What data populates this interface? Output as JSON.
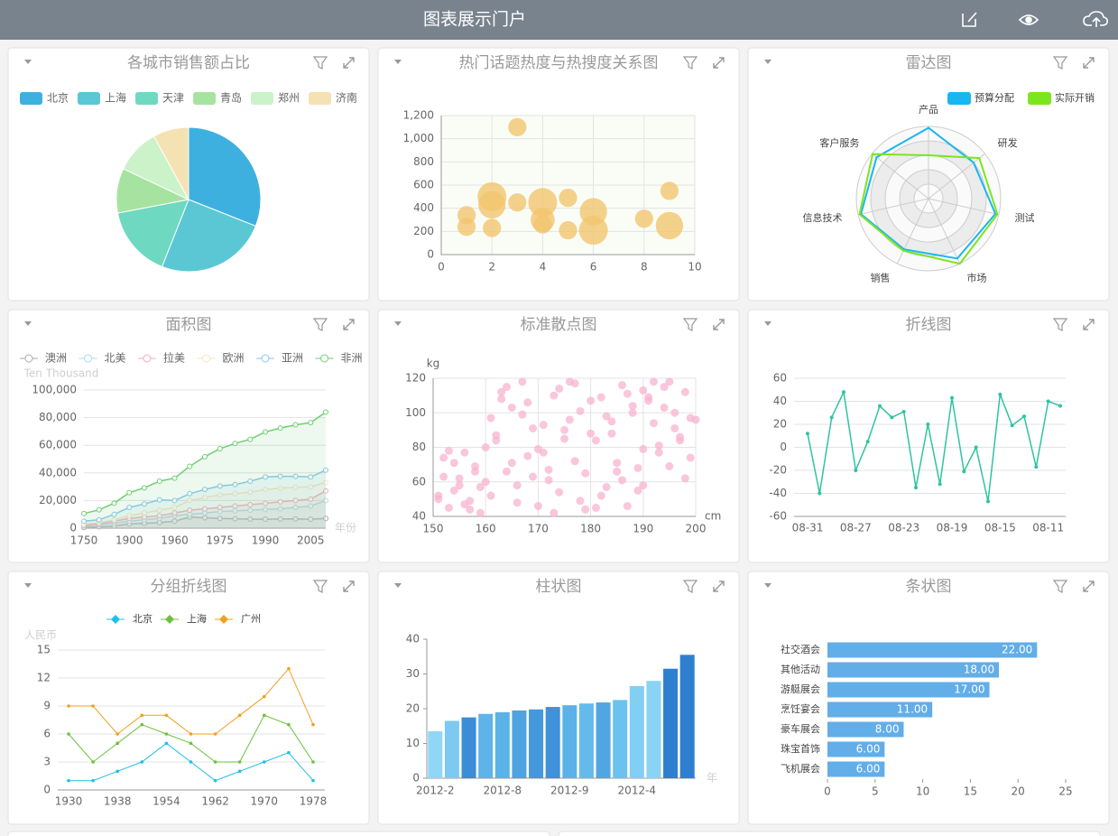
{
  "header": {
    "title": "图表展示门户"
  },
  "chart_data": [
    {
      "type": "pie",
      "title": "各城市销售额占比",
      "categories": [
        "北京",
        "上海",
        "天津",
        "青岛",
        "郑州",
        "济南"
      ],
      "values": [
        31,
        25,
        16,
        10,
        10,
        8
      ],
      "colors": [
        "#3eb0e0",
        "#5bc7d4",
        "#6fd8c0",
        "#a7e3a0",
        "#cbf2c8",
        "#f5e2b3"
      ]
    },
    {
      "type": "bubble",
      "title": "热门话题热度与热搜度关系图",
      "x": [
        1,
        1,
        2,
        2,
        2,
        3,
        3,
        4,
        4,
        4,
        5,
        5,
        6,
        6,
        8,
        9,
        9
      ],
      "y": [
        340,
        240,
        500,
        430,
        230,
        1100,
        450,
        450,
        300,
        260,
        490,
        210,
        370,
        210,
        310,
        550,
        250
      ],
      "sizes": [
        40,
        40,
        100,
        90,
        40,
        40,
        40,
        100,
        70,
        40,
        40,
        40,
        90,
        100,
        40,
        40,
        90
      ],
      "color": "#f3c56f",
      "xlim": [
        0,
        10
      ],
      "xticks": [
        0,
        2,
        4,
        6,
        8,
        10
      ],
      "ylim": [
        0,
        1200
      ],
      "yticks": [
        0,
        200,
        400,
        600,
        800,
        {
          "value": 1000,
          "label": "1,000"
        },
        {
          "value": 1200,
          "label": "1,200"
        }
      ],
      "grid": true
    },
    {
      "type": "radar",
      "title": "雷达图",
      "indicators": [
        "产品",
        "研发",
        "测试",
        "市场",
        "销售",
        "信息技术",
        "客户服务"
      ],
      "max": 100,
      "series": [
        {
          "name": "预算分配",
          "color": "#1ab6f0",
          "values": [
            98,
            80,
            95,
            92,
            78,
            96,
            92
          ]
        },
        {
          "name": "实际开销",
          "color": "#7be61f",
          "values": [
            60,
            90,
            98,
            100,
            80,
            98,
            99
          ]
        }
      ]
    },
    {
      "type": "area",
      "title": "面积图",
      "y_label": "Ten Thousand",
      "x_label": "年份",
      "categories": [
        "1750",
        null,
        null,
        "1900",
        null,
        null,
        "1960",
        null,
        null,
        "1975",
        null,
        null,
        "1990",
        null,
        null,
        "2005",
        null
      ],
      "series": [
        {
          "name": "澳洲",
          "color": "#aaaaaa",
          "values": [
            500,
            1000,
            1500,
            3000,
            3500,
            4000,
            5000,
            8000,
            7500,
            7000,
            6800,
            6500,
            6500,
            6600,
            6700,
            6500,
            7000
          ]
        },
        {
          "name": "北美",
          "color": "#a8dcef",
          "values": [
            1500,
            2500,
            3500,
            5000,
            6000,
            7000,
            9000,
            10000,
            11000,
            12000,
            12500,
            13000,
            13500,
            14000,
            15000,
            16000,
            20000
          ]
        },
        {
          "name": "拉美",
          "color": "#f5a8bb",
          "values": [
            2000,
            3000,
            5000,
            7000,
            8000,
            9000,
            11000,
            13000,
            14000,
            15000,
            16000,
            17000,
            18000,
            19000,
            20000,
            21000,
            27000
          ]
        },
        {
          "name": "欧洲",
          "color": "#fde3bd",
          "values": [
            3000,
            4000,
            6000,
            9000,
            11000,
            13000,
            15000,
            20000,
            22000,
            24000,
            25000,
            26000,
            28000,
            29000,
            29500,
            30000,
            33000
          ]
        },
        {
          "name": "亚洲",
          "color": "#8ac7ee",
          "values": [
            5000,
            6000,
            10000,
            15000,
            17500,
            20500,
            20000,
            25000,
            28000,
            30500,
            31500,
            34000,
            37000,
            37500,
            37500,
            37000,
            42000
          ]
        },
        {
          "name": "非洲",
          "color": "#6fcf73",
          "values": [
            10600,
            13300,
            18100,
            25700,
            29200,
            34000,
            36200,
            44800,
            51700,
            57500,
            61300,
            64300,
            69700,
            72500,
            74800,
            76400,
            84000
          ]
        }
      ],
      "ylim": [
        0,
        100000
      ],
      "yticks": [
        0,
        {
          "value": 20000,
          "label": "20,000"
        },
        {
          "value": 40000,
          "label": "40,000"
        },
        {
          "value": 60000,
          "label": "60,000"
        },
        {
          "value": 80000,
          "label": "80,000"
        },
        {
          "value": 100000,
          "label": "100,000"
        }
      ],
      "grid": true
    },
    {
      "type": "scatter",
      "title": "标准散点图",
      "y_label": "kg",
      "x_label": "cm",
      "color": "#f7b3cf",
      "x": [
        151,
        152,
        153,
        154,
        155,
        156,
        157,
        158,
        159,
        160,
        152,
        154,
        156,
        158,
        160,
        155,
        157,
        159,
        153,
        151,
        161,
        162,
        163,
        164,
        165,
        166,
        167,
        168,
        169,
        170,
        161,
        163,
        165,
        167,
        169,
        162,
        164,
        166,
        168,
        170,
        171,
        172,
        173,
        174,
        175,
        176,
        177,
        178,
        179,
        180,
        172,
        174,
        176,
        178,
        180,
        171,
        173,
        175,
        177,
        179,
        181,
        182,
        183,
        184,
        185,
        186,
        187,
        188,
        189,
        190,
        182,
        184,
        186,
        188,
        190,
        181,
        183,
        185,
        187,
        189,
        191,
        192,
        193,
        194,
        195,
        196,
        197,
        198,
        199,
        200,
        192,
        194,
        196,
        198,
        191,
        193,
        195,
        197,
        199,
        190
      ],
      "y": [
        52,
        63,
        45,
        71,
        58,
        77,
        49,
        66,
        42,
        60,
        74,
        55,
        47,
        69,
        80,
        62,
        44,
        57,
        78,
        50,
        97,
        84,
        112,
        66,
        103,
        58,
        118,
        75,
        91,
        46,
        52,
        108,
        71,
        99,
        63,
        87,
        115,
        48,
        106,
        79,
        93,
        67,
        110,
        54,
        85,
        118,
        72,
        101,
        44,
        88,
        61,
        114,
        96,
        49,
        107,
        77,
        42,
        90,
        117,
        65,
        84,
        109,
        57,
        95,
        71,
        116,
        46,
        100,
        68,
        113,
        52,
        88,
        61,
        104,
        79,
        45,
        98,
        66,
        111,
        55,
        107,
        94,
        81,
        115,
        69,
        100,
        86,
        112,
        74,
        96,
        118,
        103,
        91,
        62,
        109,
        77,
        118,
        84,
        97,
        58
      ],
      "xlim": [
        150,
        200
      ],
      "xticks": [
        150,
        160,
        170,
        180,
        190,
        200
      ],
      "ylim": [
        40,
        120
      ],
      "yticks": [
        40,
        60,
        80,
        100,
        120
      ],
      "grid": true
    },
    {
      "type": "line",
      "title": "折线图",
      "color": "#2ec4a0",
      "categories": [
        "08-31",
        null,
        null,
        null,
        "08-27",
        null,
        null,
        null,
        "08-23",
        null,
        null,
        null,
        "08-19",
        null,
        null,
        null,
        "08-15",
        null,
        null,
        null,
        "08-11",
        null
      ],
      "values": [
        12,
        -40,
        26,
        48,
        -20,
        5,
        36,
        26,
        31,
        -35,
        20,
        -32,
        43,
        -21,
        0,
        -47,
        46,
        19,
        27,
        -17,
        40,
        36
      ],
      "ylim": [
        -60,
        60
      ],
      "yticks": [
        -60,
        -40,
        -20,
        0,
        20,
        40,
        60
      ],
      "grid": true
    },
    {
      "type": "multiline",
      "title": "分组折线图",
      "y_label": "人民币",
      "categories": [
        "1930",
        null,
        "1938",
        null,
        "1954",
        null,
        "1962",
        null,
        "1970",
        null,
        "1978"
      ],
      "series": [
        {
          "name": "北京",
          "color": "#1ec0e6",
          "values": [
            1,
            1,
            2,
            3,
            5,
            3,
            1,
            2,
            3,
            4,
            1
          ]
        },
        {
          "name": "上海",
          "color": "#6cc13e",
          "values": [
            6,
            3,
            5,
            7,
            6,
            5,
            3,
            3,
            8,
            7,
            3
          ]
        },
        {
          "name": "广州",
          "color": "#f0a020",
          "values": [
            9,
            9,
            6,
            8,
            8,
            6,
            6,
            8,
            10,
            13,
            7
          ]
        }
      ],
      "ylim": [
        0,
        15
      ],
      "yticks": [
        0,
        3,
        6,
        9,
        12,
        15
      ],
      "grid": true
    },
    {
      "type": "bar",
      "title": "柱状图",
      "x_label": "年",
      "categories": [
        "2012-2",
        null,
        null,
        null,
        "2012-8",
        null,
        null,
        null,
        "2012-9",
        null,
        null,
        null,
        "2012-4",
        null,
        null,
        null
      ],
      "values": [
        13.5,
        16.5,
        17.5,
        18.5,
        19,
        19.5,
        19.8,
        20.5,
        21,
        21.5,
        21.8,
        22.5,
        26.5,
        28,
        31.5,
        35.5
      ],
      "colors": [
        "#8fd7f5",
        "#7cc9f2",
        "#3a8dd6",
        "#5eb3e8",
        "#5ab3e6",
        "#4ea3e0",
        "#4698dc",
        "#3f91d9",
        "#5cb2e7",
        "#64bbeb",
        "#50a6e2",
        "#6cc2ee",
        "#82cff4",
        "#8ad3f5",
        "#2f7fd0",
        "#2f7fd0"
      ],
      "ylim": [
        0,
        40
      ],
      "yticks": [
        0,
        10,
        20,
        30,
        40
      ],
      "grid": false
    },
    {
      "type": "hbar",
      "title": "条状图",
      "color": "#62aee8",
      "categories": [
        "社交酒会",
        "其他活动",
        "游艇展会",
        "烹饪宴会",
        "豪车展会",
        "珠宝首饰",
        "飞机展会"
      ],
      "values": [
        22,
        18,
        17,
        11,
        8,
        6,
        6
      ],
      "value_labels": [
        "22.00",
        "18.00",
        "17.00",
        "11.00",
        "8.00",
        "6.00",
        "6.00"
      ],
      "xlim": [
        0,
        25
      ],
      "xticks": [
        0,
        5,
        10,
        15,
        20,
        25
      ],
      "grid": false
    }
  ]
}
